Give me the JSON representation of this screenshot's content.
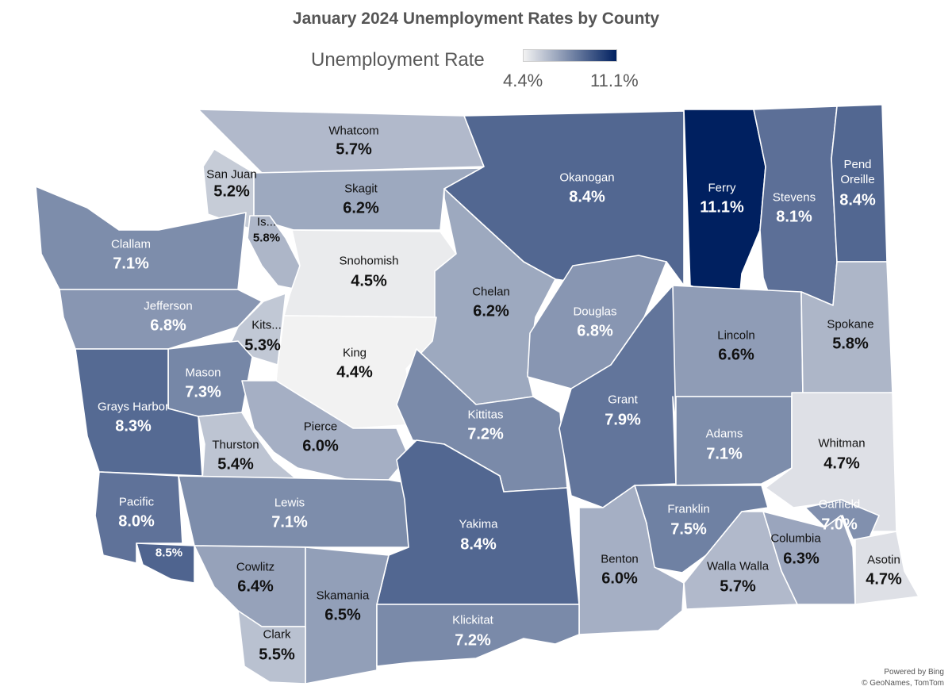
{
  "title": "January 2024 Unemployment Rates by County",
  "legend": {
    "label": "Unemployment Rate",
    "min_label": "4.4%",
    "max_label": "11.1%",
    "min_value": 4.4,
    "max_value": 11.1,
    "color_low": "#f2f2f2",
    "color_high": "#002060"
  },
  "counties": [
    {
      "name": "Whatcom",
      "rate_label": "5.7%",
      "rate": 5.7
    },
    {
      "name": "San Juan",
      "rate_label": "5.2%",
      "rate": 5.2
    },
    {
      "name": "Skagit",
      "rate_label": "6.2%",
      "rate": 6.2
    },
    {
      "name": "Okanogan",
      "rate_label": "8.4%",
      "rate": 8.4
    },
    {
      "name": "Ferry",
      "rate_label": "11.1%",
      "rate": 11.1
    },
    {
      "name": "Stevens",
      "rate_label": "8.1%",
      "rate": 8.1
    },
    {
      "name": "Pend Oreille",
      "rate_label": "8.4%",
      "rate": 8.4
    },
    {
      "name": "Clallam",
      "rate_label": "7.1%",
      "rate": 7.1
    },
    {
      "name": "Is...",
      "rate_label": "5.8%",
      "rate": 5.8
    },
    {
      "name": "Snohomish",
      "rate_label": "4.5%",
      "rate": 4.5
    },
    {
      "name": "Chelan",
      "rate_label": "6.2%",
      "rate": 6.2
    },
    {
      "name": "Douglas",
      "rate_label": "6.8%",
      "rate": 6.8
    },
    {
      "name": "Jefferson",
      "rate_label": "6.8%",
      "rate": 6.8
    },
    {
      "name": "Kits...",
      "rate_label": "5.3%",
      "rate": 5.3
    },
    {
      "name": "King",
      "rate_label": "4.4%",
      "rate": 4.4
    },
    {
      "name": "Lincoln",
      "rate_label": "6.6%",
      "rate": 6.6
    },
    {
      "name": "Spokane",
      "rate_label": "5.8%",
      "rate": 5.8
    },
    {
      "name": "Mason",
      "rate_label": "7.3%",
      "rate": 7.3
    },
    {
      "name": "Grays Harbor",
      "rate_label": "8.3%",
      "rate": 8.3
    },
    {
      "name": "Kittitas",
      "rate_label": "7.2%",
      "rate": 7.2
    },
    {
      "name": "Grant",
      "rate_label": "7.9%",
      "rate": 7.9
    },
    {
      "name": "Pierce",
      "rate_label": "6.0%",
      "rate": 6.0
    },
    {
      "name": "Thurston",
      "rate_label": "5.4%",
      "rate": 5.4
    },
    {
      "name": "Adams",
      "rate_label": "7.1%",
      "rate": 7.1
    },
    {
      "name": "Whitman",
      "rate_label": "4.7%",
      "rate": 4.7
    },
    {
      "name": "Pacific",
      "rate_label": "8.0%",
      "rate": 8.0
    },
    {
      "name": "Lewis",
      "rate_label": "7.1%",
      "rate": 7.1
    },
    {
      "name": "Yakima",
      "rate_label": "8.4%",
      "rate": 8.4
    },
    {
      "name": "Franklin",
      "rate_label": "7.5%",
      "rate": 7.5
    },
    {
      "name": "Garfield",
      "rate_label": "7.0%",
      "rate": 7.0
    },
    {
      "name": "Columbia",
      "rate_label": "6.3%",
      "rate": 6.3
    },
    {
      "name": "Benton",
      "rate_label": "6.0%",
      "rate": 6.0
    },
    {
      "name": "Walla Walla",
      "rate_label": "5.7%",
      "rate": 5.7
    },
    {
      "name": "Asotin",
      "rate_label": "4.7%",
      "rate": 4.7
    },
    {
      "name": "Cowlitz",
      "rate_label": "6.4%",
      "rate": 6.4
    },
    {
      "name": "Skamania",
      "rate_label": "6.5%",
      "rate": 6.5
    },
    {
      "name": "Klickitat",
      "rate_label": "7.2%",
      "rate": 7.2
    },
    {
      "name": "Clark",
      "rate_label": "5.5%",
      "rate": 5.5
    },
    {
      "name": "",
      "rate_label": "8.5%",
      "rate": 8.5
    }
  ],
  "credit": {
    "line1": "Powered by Bing",
    "line2": "© GeoNames, TomTom"
  }
}
